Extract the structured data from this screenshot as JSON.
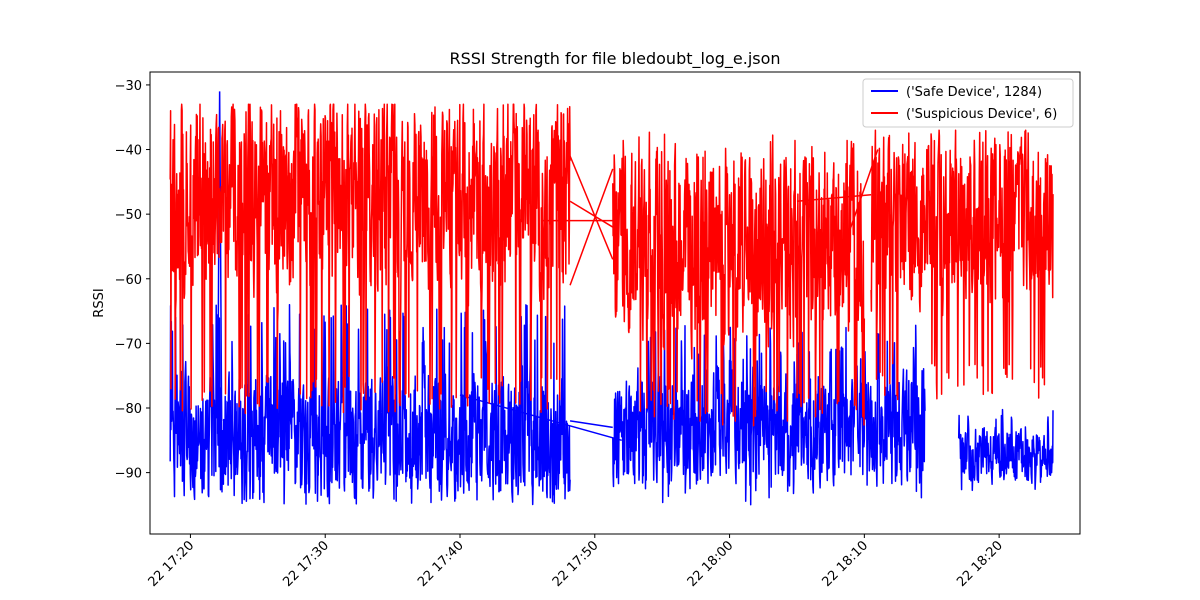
{
  "chart_data": {
    "type": "line",
    "title": "RSSI Strength for file bledoubt_log_e.json",
    "xlabel": "",
    "ylabel": "RSSI",
    "xlim": [
      "22 17:17:00",
      "22 18:26:00"
    ],
    "ylim": [
      -99.5,
      -28.0
    ],
    "x_ticks": [
      "22 17:20",
      "22 17:30",
      "22 17:40",
      "22 17:50",
      "22 18:00",
      "22 18:10",
      "22 18:20"
    ],
    "y_ticks": [
      -30,
      -40,
      -50,
      -60,
      -70,
      -80,
      -90
    ],
    "grid": false,
    "legend_position": "top-right",
    "series": [
      {
        "name": "('Safe Device', 1284)",
        "color": "#0000ff",
        "segments": [
          {
            "t0": "22 17:18:30",
            "t1": "22 17:48:10",
            "min": -95,
            "max": -64,
            "center": -84
          },
          {
            "t0": "22 17:51:20",
            "t1": "22 18:14:30",
            "min": -95,
            "max": -67,
            "center": -83
          },
          {
            "t0": "22 18:17:00",
            "t1": "22 18:24:00",
            "min": -93,
            "max": -80,
            "center": -87
          }
        ],
        "spikes": [
          {
            "t": "22 17:22:10",
            "value": -31
          }
        ],
        "bridges": [
          {
            "t0": "22 17:48:10",
            "v0": -82,
            "t1": "22 17:51:20",
            "v1": -83
          },
          {
            "t0": "22 17:40:00",
            "v0": -78,
            "t1": "22 17:52:00",
            "v1": -85
          }
        ]
      },
      {
        "name": "('Suspicious Device', 6)",
        "color": "#ff0000",
        "segments": [
          {
            "t0": "22 17:18:30",
            "t1": "22 17:48:10",
            "min": -81,
            "max": -33,
            "center": -47
          },
          {
            "t0": "22 17:51:20",
            "t1": "22 18:10:00",
            "min": -83,
            "max": -37,
            "center": -55
          },
          {
            "t0": "22 18:10:30",
            "t1": "22 18:24:00",
            "min": -79,
            "max": -37,
            "center": -51
          }
        ],
        "spikes": [],
        "bridges": [
          {
            "t0": "22 17:48:10",
            "v0": -61,
            "t1": "22 17:51:20",
            "v1": -43
          },
          {
            "t0": "22 17:48:10",
            "v0": -48,
            "t1": "22 17:51:20",
            "v1": -52
          },
          {
            "t0": "22 17:46:00",
            "v0": -51,
            "t1": "22 17:51:20",
            "v1": -51
          },
          {
            "t0": "22 17:48:10",
            "v0": -41,
            "t1": "22 17:51:20",
            "v1": -57
          },
          {
            "t0": "22 18:05:00",
            "v0": -48,
            "t1": "22 18:10:30",
            "v1": -47
          },
          {
            "t0": "22 18:08:00",
            "v0": -58,
            "t1": "22 18:11:00",
            "v1": -40
          }
        ]
      }
    ]
  }
}
